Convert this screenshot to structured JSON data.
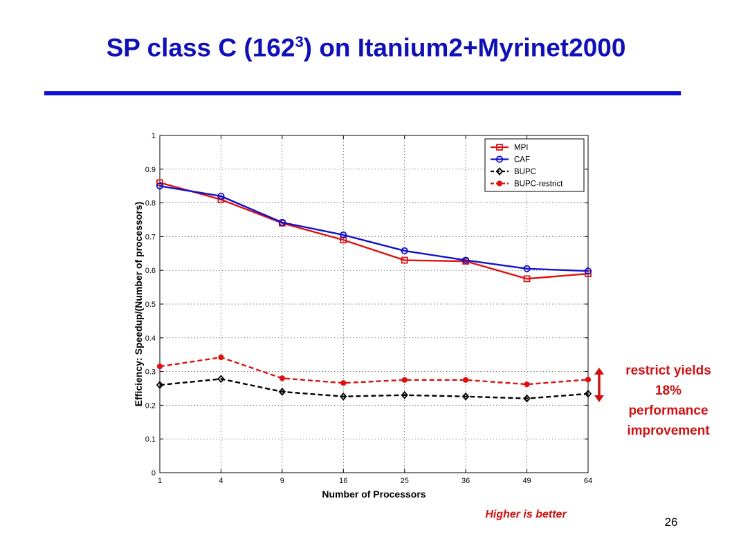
{
  "slide": {
    "title_main": "SP class C (162",
    "title_sup": "3",
    "title_rest": ") on Itanium2+Myrinet2000",
    "callout": "restrict yields 18% performance improvement",
    "callout_lines": [
      "restrict yields",
      "18%",
      "performance",
      "improvement"
    ],
    "footer_note": "Higher is better",
    "page_number": "26",
    "colors": {
      "title": "#1010b8",
      "rule": "#1010d8",
      "callout": "#d01010"
    }
  },
  "chart_data": {
    "type": "line",
    "xlabel": "Number of Processors",
    "ylabel": "Efficiency: Speedup/(Number of processors)",
    "x_scale": "sqrt",
    "categories": [
      1,
      4,
      9,
      16,
      25,
      36,
      49,
      64
    ],
    "ylim": [
      0,
      1
    ],
    "yticks": [
      0,
      0.1,
      0.2,
      0.3,
      0.4,
      0.5,
      0.6,
      0.7,
      0.8,
      0.9,
      1
    ],
    "grid": true,
    "legend_position": "top-right",
    "series": [
      {
        "name": "MPI",
        "color": "#dd1111",
        "marker": "square",
        "dashed": false,
        "values": [
          0.86,
          0.81,
          0.74,
          0.69,
          0.63,
          0.627,
          0.575,
          0.59
        ]
      },
      {
        "name": "CAF",
        "color": "#1111cc",
        "marker": "circle",
        "dashed": false,
        "values": [
          0.85,
          0.82,
          0.742,
          0.705,
          0.658,
          0.63,
          0.605,
          0.598
        ]
      },
      {
        "name": "BUPC",
        "color": "#000000",
        "marker": "diamond",
        "dashed": true,
        "values": [
          0.26,
          0.278,
          0.24,
          0.226,
          0.23,
          0.226,
          0.22,
          0.234
        ]
      },
      {
        "name": "BUPC-restrict",
        "color": "#dd1111",
        "marker": "dot",
        "dashed": true,
        "values": [
          0.315,
          0.342,
          0.28,
          0.266,
          0.275,
          0.275,
          0.262,
          0.276
        ]
      }
    ]
  }
}
